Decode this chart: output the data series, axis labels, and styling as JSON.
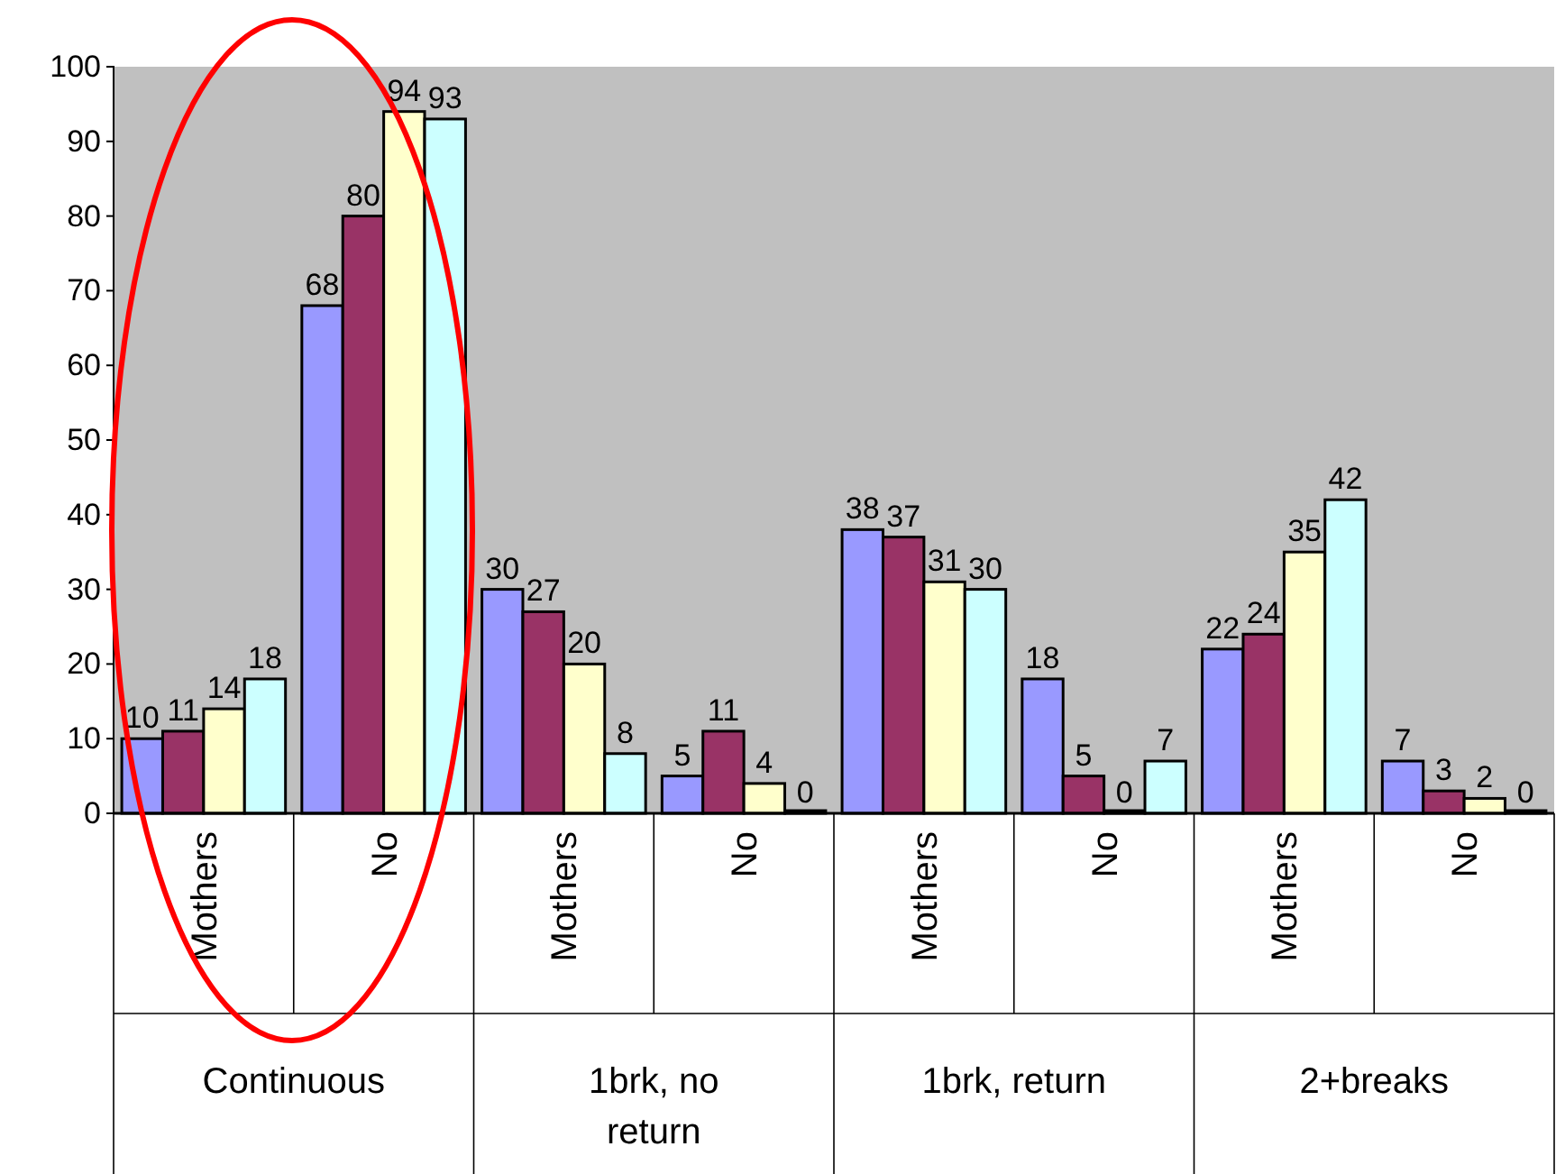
{
  "chart_data": {
    "type": "bar",
    "categories": [
      "Mothers",
      "No",
      "Mothers",
      "No",
      "Mothers",
      "No",
      "Mothers",
      "No"
    ],
    "series": [
      {
        "color": "#9999ff",
        "values": [
          10,
          68,
          30,
          5,
          38,
          18,
          22,
          7
        ]
      },
      {
        "color": "#993366",
        "values": [
          11,
          80,
          27,
          11,
          37,
          5,
          24,
          3
        ]
      },
      {
        "color": "#ffffcc",
        "values": [
          14,
          94,
          20,
          4,
          31,
          0,
          35,
          2
        ]
      },
      {
        "color": "#ccffff",
        "values": [
          18,
          93,
          8,
          0,
          30,
          7,
          42,
          0
        ]
      }
    ],
    "annotations": [
      "Continuous",
      "1brk, no return",
      "1brk, return",
      "2+breaks"
    ],
    "ylim": [
      0,
      100
    ],
    "yticks": [
      0,
      10,
      20,
      30,
      40,
      50,
      60,
      70,
      80,
      90,
      100
    ],
    "grid": false,
    "legend": false,
    "data_labels": true
  }
}
